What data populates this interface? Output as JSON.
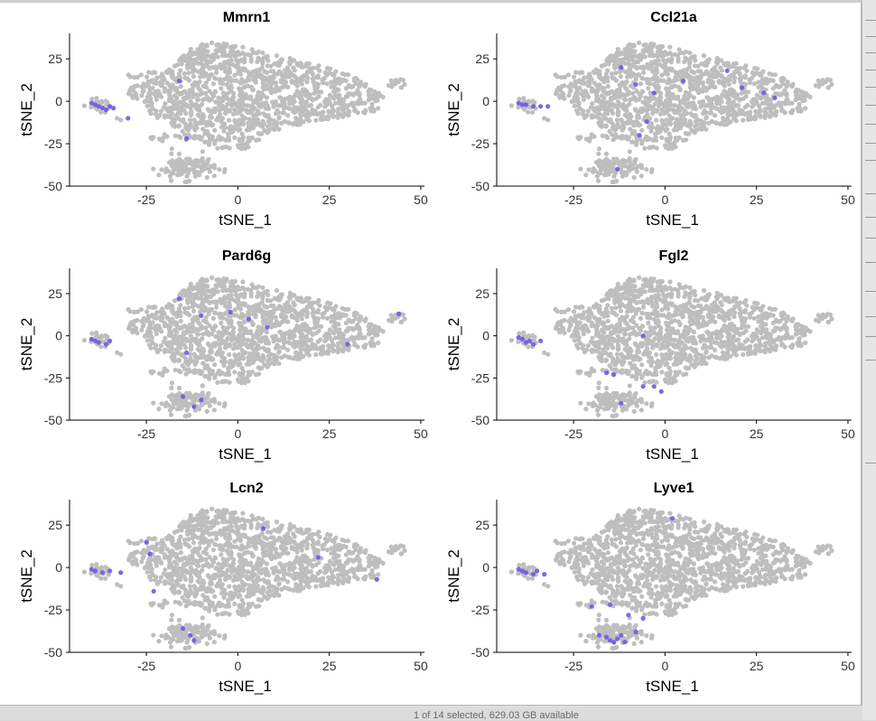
{
  "status": {
    "text": "1 of 14 selected, 629.03 GB available"
  },
  "colors": {
    "background_cells": "#bebebe",
    "expressing_cells": "#6e5ae6",
    "axis": "#000000"
  },
  "chart_data": [
    {
      "type": "scatter",
      "title": "Mmrn1",
      "xlabel": "tSNE_1",
      "ylabel": "tSNE_2",
      "xlim": [
        -46,
        51
      ],
      "ylim": [
        -50,
        40
      ],
      "xticks": [
        -25,
        0,
        25,
        50
      ],
      "yticks": [
        25,
        0,
        -25,
        -50
      ],
      "grid": false,
      "legend": "none",
      "highlight": [
        [
          -40,
          -1
        ],
        [
          -39,
          -2
        ],
        [
          -38,
          -3
        ],
        [
          -37,
          -4
        ],
        [
          -36,
          -5
        ],
        [
          -35,
          -3
        ],
        [
          -34,
          -4
        ],
        [
          -30,
          -10
        ],
        [
          -14,
          -22
        ],
        [
          -16,
          12
        ]
      ]
    },
    {
      "type": "scatter",
      "title": "Ccl21a",
      "xlabel": "tSNE_1",
      "ylabel": "tSNE_2",
      "xlim": [
        -46,
        51
      ],
      "ylim": [
        -50,
        40
      ],
      "xticks": [
        -25,
        0,
        25,
        50
      ],
      "yticks": [
        25,
        0,
        -25,
        -50
      ],
      "grid": false,
      "legend": "none",
      "highlight": [
        [
          -40,
          -1
        ],
        [
          -39,
          -2
        ],
        [
          -38,
          -2
        ],
        [
          -36,
          -3
        ],
        [
          -34,
          -3
        ],
        [
          -32,
          -3
        ],
        [
          -12,
          20
        ],
        [
          -8,
          10
        ],
        [
          -5,
          -12
        ],
        [
          -3,
          5
        ],
        [
          5,
          12
        ],
        [
          17,
          18
        ],
        [
          21,
          8
        ],
        [
          27,
          5
        ],
        [
          30,
          2
        ],
        [
          -7,
          -20
        ],
        [
          -13,
          -40
        ]
      ]
    },
    {
      "type": "scatter",
      "title": "Pard6g",
      "xlabel": "tSNE_1",
      "ylabel": "tSNE_2",
      "xlim": [
        -46,
        51
      ],
      "ylim": [
        -50,
        40
      ],
      "xticks": [
        -25,
        0,
        25,
        50
      ],
      "yticks": [
        25,
        0,
        -25,
        -50
      ],
      "grid": false,
      "legend": "none",
      "highlight": [
        [
          -40,
          -2
        ],
        [
          -39,
          -3
        ],
        [
          -38,
          -4
        ],
        [
          -36,
          -5
        ],
        [
          -35,
          -3
        ],
        [
          -16,
          22
        ],
        [
          -10,
          12
        ],
        [
          -2,
          14
        ],
        [
          3,
          10
        ],
        [
          8,
          5
        ],
        [
          -14,
          -10
        ],
        [
          -15,
          -36
        ],
        [
          -12,
          -42
        ],
        [
          -10,
          -38
        ],
        [
          44,
          13
        ],
        [
          30,
          -5
        ]
      ]
    },
    {
      "type": "scatter",
      "title": "Fgl2",
      "xlabel": "tSNE_1",
      "ylabel": "tSNE_2",
      "xlim": [
        -46,
        51
      ],
      "ylim": [
        -50,
        40
      ],
      "xticks": [
        -25,
        0,
        25,
        50
      ],
      "yticks": [
        25,
        0,
        -25,
        -50
      ],
      "grid": false,
      "legend": "none",
      "highlight": [
        [
          -40,
          -1
        ],
        [
          -39,
          -2
        ],
        [
          -38,
          -4
        ],
        [
          -37,
          -3
        ],
        [
          -36,
          -5
        ],
        [
          -34,
          -3
        ],
        [
          -16,
          -22
        ],
        [
          -14,
          -23
        ],
        [
          -6,
          -30
        ],
        [
          -3,
          -30
        ],
        [
          -1,
          -33
        ],
        [
          -12,
          -40
        ],
        [
          -6,
          0
        ]
      ]
    },
    {
      "type": "scatter",
      "title": "Lcn2",
      "xlabel": "tSNE_1",
      "ylabel": "tSNE_2",
      "xlim": [
        -46,
        51
      ],
      "ylim": [
        -50,
        40
      ],
      "xticks": [
        -25,
        0,
        25,
        50
      ],
      "yticks": [
        25,
        0,
        -25,
        -50
      ],
      "grid": false,
      "legend": "none",
      "highlight": [
        [
          -40,
          -1
        ],
        [
          -39,
          -2
        ],
        [
          -37,
          -3
        ],
        [
          -35,
          -2
        ],
        [
          -32,
          -3
        ],
        [
          -25,
          15
        ],
        [
          -24,
          8
        ],
        [
          -23,
          -14
        ],
        [
          7,
          23
        ],
        [
          22,
          6
        ],
        [
          38,
          -7
        ],
        [
          -15,
          -36
        ],
        [
          -13,
          -40
        ],
        [
          -12,
          -43
        ]
      ]
    },
    {
      "type": "scatter",
      "title": "Lyve1",
      "xlabel": "tSNE_1",
      "ylabel": "tSNE_2",
      "xlim": [
        -46,
        51
      ],
      "ylim": [
        -50,
        40
      ],
      "xticks": [
        -25,
        0,
        25,
        50
      ],
      "yticks": [
        25,
        0,
        -25,
        -50
      ],
      "grid": false,
      "legend": "none",
      "highlight": [
        [
          -40,
          -1
        ],
        [
          -39,
          -2
        ],
        [
          -38,
          -3
        ],
        [
          -36,
          -4
        ],
        [
          -35,
          -2
        ],
        [
          -33,
          -4
        ],
        [
          -18,
          -40
        ],
        [
          -16,
          -41
        ],
        [
          -15,
          -43
        ],
        [
          -14,
          -44
        ],
        [
          -13,
          -42
        ],
        [
          -12,
          -40
        ],
        [
          -11,
          -44
        ],
        [
          -8,
          -38
        ],
        [
          -10,
          -28
        ],
        [
          -6,
          -30
        ],
        [
          -15,
          -22
        ],
        [
          2,
          29
        ],
        [
          -20,
          -23
        ]
      ]
    }
  ]
}
